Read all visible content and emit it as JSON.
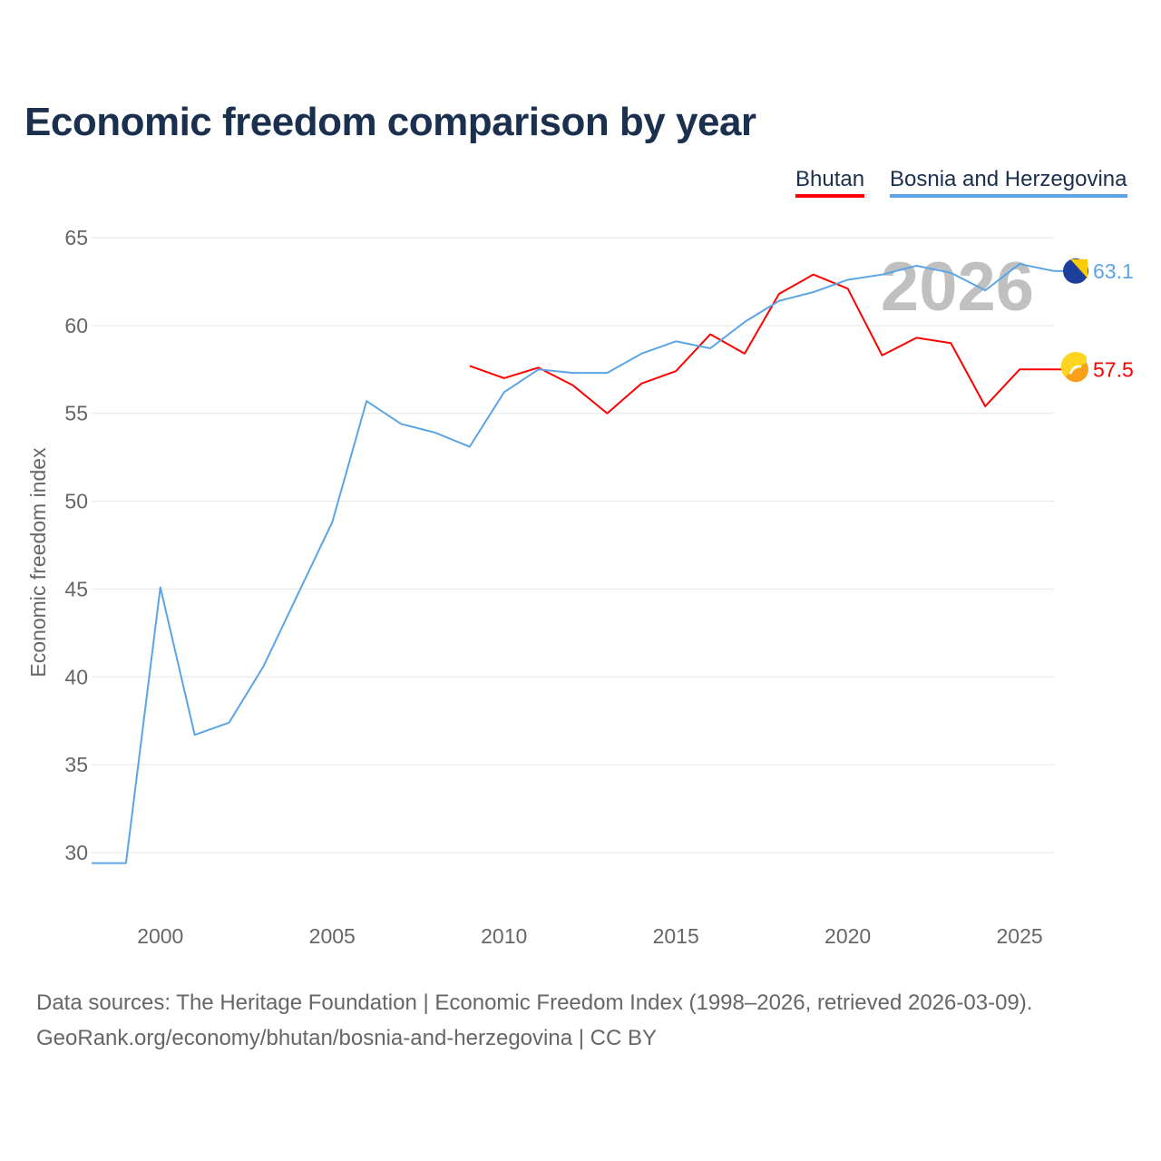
{
  "chart_data": {
    "type": "line",
    "title": "Economic freedom comparison by year",
    "xlabel": "",
    "ylabel": "Economic freedom index",
    "xlim": [
      1998,
      2026
    ],
    "ylim": [
      27,
      66.5
    ],
    "x_ticks": [
      2000,
      2005,
      2010,
      2015,
      2020,
      2025
    ],
    "y_ticks": [
      30,
      35,
      40,
      45,
      50,
      55,
      60,
      65
    ],
    "grid": true,
    "legend_placement": "top-right",
    "year_watermark": "2026",
    "series": [
      {
        "name": "Bhutan",
        "color": "#ff0000",
        "end_label": "57.5",
        "x": [
          2009,
          2010,
          2011,
          2012,
          2013,
          2014,
          2015,
          2016,
          2017,
          2018,
          2019,
          2020,
          2021,
          2022,
          2023,
          2024,
          2025,
          2026
        ],
        "values": [
          57.7,
          57.0,
          57.6,
          56.6,
          55.0,
          56.7,
          57.4,
          59.5,
          58.4,
          61.8,
          62.9,
          62.1,
          58.3,
          59.3,
          59.0,
          55.4,
          57.5,
          57.5
        ]
      },
      {
        "name": "Bosnia and Herzegovina",
        "color": "#5ba4e6",
        "end_label": "63.1",
        "x": [
          1998,
          1999,
          2000,
          2001,
          2002,
          2003,
          2004,
          2005,
          2006,
          2007,
          2008,
          2009,
          2010,
          2011,
          2012,
          2013,
          2014,
          2015,
          2016,
          2017,
          2018,
          2019,
          2020,
          2021,
          2022,
          2023,
          2024,
          2025,
          2026
        ],
        "values": [
          29.4,
          29.4,
          45.1,
          36.7,
          37.4,
          40.6,
          44.7,
          48.8,
          55.7,
          54.4,
          53.9,
          53.1,
          56.2,
          57.5,
          57.3,
          57.3,
          58.4,
          59.1,
          58.7,
          60.2,
          61.4,
          61.9,
          62.6,
          62.9,
          63.4,
          63.0,
          62.0,
          63.5,
          63.1
        ]
      }
    ]
  },
  "source": {
    "line1": "Data sources: The Heritage Foundation | Economic Freedom Index (1998–2026, retrieved 2026-03-09).",
    "line2": "GeoRank.org/economy/bhutan/bosnia-and-herzegovina | CC BY"
  }
}
